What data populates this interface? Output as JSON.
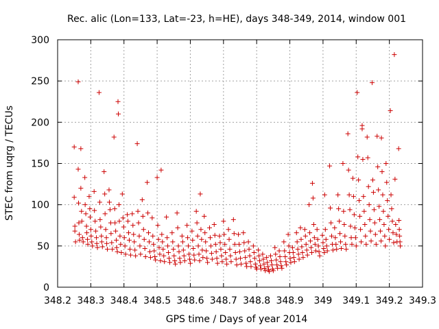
{
  "chart_data": {
    "type": "scatter",
    "title": "Rec. alic (Lon=133, Lat=-23, h=HE), days 348-349, 2014, window 001",
    "xlabel": "GPS time / Days of year 2014",
    "ylabel": "STEC from uqrg / TECUs",
    "xlim": [
      348.2,
      349.3
    ],
    "ylim": [
      0,
      300
    ],
    "xticks": [
      348.2,
      348.3,
      348.4,
      348.5,
      348.6,
      348.7,
      348.8,
      348.9,
      349,
      349.1,
      349.2,
      349.3
    ],
    "xtick_labels": [
      "348.2",
      "348.3",
      "348.4",
      "348.5",
      "348.6",
      "348.7",
      "348.8",
      "348.9",
      "349",
      "349.1",
      "349.2",
      "349.3"
    ],
    "yticks": [
      0,
      50,
      100,
      150,
      200,
      250,
      300
    ],
    "ytick_labels": [
      "0",
      "50",
      "100",
      "150",
      "200",
      "250",
      "300"
    ],
    "grid": true,
    "marker": "+",
    "color": "#cc0000",
    "points": [
      [
        348.25,
        170
      ],
      [
        348.25,
        109
      ],
      [
        348.252,
        74
      ],
      [
        348.252,
        68
      ],
      [
        348.254,
        55
      ],
      [
        348.262,
        249
      ],
      [
        348.262,
        143
      ],
      [
        348.263,
        102
      ],
      [
        348.264,
        78
      ],
      [
        348.265,
        64
      ],
      [
        348.266,
        57
      ],
      [
        348.27,
        168
      ],
      [
        348.27,
        120
      ],
      [
        348.272,
        92
      ],
      [
        348.273,
        80
      ],
      [
        348.275,
        60
      ],
      [
        348.277,
        55
      ],
      [
        348.282,
        133
      ],
      [
        348.283,
        100
      ],
      [
        348.285,
        89
      ],
      [
        348.287,
        74
      ],
      [
        348.288,
        66
      ],
      [
        348.29,
        58
      ],
      [
        348.291,
        52
      ],
      [
        348.295,
        110
      ],
      [
        348.297,
        95
      ],
      [
        348.298,
        85
      ],
      [
        348.3,
        70
      ],
      [
        348.301,
        62
      ],
      [
        348.303,
        55
      ],
      [
        348.305,
        50
      ],
      [
        348.31,
        116
      ],
      [
        348.311,
        93
      ],
      [
        348.313,
        80
      ],
      [
        348.315,
        68
      ],
      [
        348.317,
        60
      ],
      [
        348.318,
        53
      ],
      [
        348.32,
        48
      ],
      [
        348.325,
        236
      ],
      [
        348.327,
        103
      ],
      [
        348.328,
        82
      ],
      [
        348.33,
        73
      ],
      [
        348.332,
        62
      ],
      [
        348.333,
        55
      ],
      [
        348.335,
        49
      ],
      [
        348.34,
        140
      ],
      [
        348.342,
        113
      ],
      [
        348.343,
        89
      ],
      [
        348.345,
        70
      ],
      [
        348.347,
        60
      ],
      [
        348.348,
        53
      ],
      [
        348.35,
        46
      ],
      [
        348.355,
        118
      ],
      [
        348.356,
        103
      ],
      [
        348.358,
        94
      ],
      [
        348.36,
        78
      ],
      [
        348.361,
        65
      ],
      [
        348.363,
        54
      ],
      [
        348.365,
        46
      ],
      [
        348.37,
        182
      ],
      [
        348.372,
        95
      ],
      [
        348.373,
        78
      ],
      [
        348.375,
        68
      ],
      [
        348.377,
        57
      ],
      [
        348.378,
        48
      ],
      [
        348.38,
        43
      ],
      [
        348.382,
        225
      ],
      [
        348.383,
        210
      ],
      [
        348.385,
        100
      ],
      [
        348.386,
        80
      ],
      [
        348.388,
        62
      ],
      [
        348.39,
        52
      ],
      [
        348.392,
        42
      ],
      [
        348.395,
        113
      ],
      [
        348.397,
        84
      ],
      [
        348.399,
        73
      ],
      [
        348.401,
        60
      ],
      [
        348.403,
        50
      ],
      [
        348.405,
        40
      ],
      [
        348.41,
        88
      ],
      [
        348.412,
        80
      ],
      [
        348.414,
        66
      ],
      [
        348.416,
        57
      ],
      [
        348.418,
        46
      ],
      [
        348.42,
        39
      ],
      [
        348.425,
        89
      ],
      [
        348.427,
        75
      ],
      [
        348.429,
        64
      ],
      [
        348.431,
        55
      ],
      [
        348.433,
        45
      ],
      [
        348.435,
        38
      ],
      [
        348.44,
        174
      ],
      [
        348.442,
        92
      ],
      [
        348.444,
        78
      ],
      [
        348.446,
        62
      ],
      [
        348.448,
        50
      ],
      [
        348.45,
        40
      ],
      [
        348.455,
        106
      ],
      [
        348.457,
        86
      ],
      [
        348.459,
        70
      ],
      [
        348.461,
        58
      ],
      [
        348.463,
        47
      ],
      [
        348.465,
        37
      ],
      [
        348.47,
        127
      ],
      [
        348.472,
        90
      ],
      [
        348.474,
        66
      ],
      [
        348.476,
        55
      ],
      [
        348.478,
        43
      ],
      [
        348.48,
        36
      ],
      [
        348.485,
        84
      ],
      [
        348.487,
        62
      ],
      [
        348.489,
        52
      ],
      [
        348.491,
        44
      ],
      [
        348.493,
        37
      ],
      [
        348.495,
        33
      ],
      [
        348.5,
        133
      ],
      [
        348.502,
        75
      ],
      [
        348.504,
        58
      ],
      [
        348.506,
        48
      ],
      [
        348.508,
        40
      ],
      [
        348.51,
        32
      ],
      [
        348.512,
        142
      ],
      [
        348.514,
        64
      ],
      [
        348.516,
        55
      ],
      [
        348.518,
        46
      ],
      [
        348.52,
        38
      ],
      [
        348.522,
        31
      ],
      [
        348.528,
        85
      ],
      [
        348.53,
        60
      ],
      [
        348.532,
        50
      ],
      [
        348.534,
        42
      ],
      [
        348.536,
        35
      ],
      [
        348.538,
        30
      ],
      [
        348.545,
        66
      ],
      [
        348.547,
        55
      ],
      [
        348.549,
        46
      ],
      [
        348.551,
        38
      ],
      [
        348.553,
        32
      ],
      [
        348.555,
        28
      ],
      [
        348.56,
        90
      ],
      [
        348.562,
        72
      ],
      [
        348.564,
        50
      ],
      [
        348.566,
        43
      ],
      [
        348.568,
        35
      ],
      [
        348.57,
        30
      ],
      [
        348.575,
        62
      ],
      [
        348.577,
        55
      ],
      [
        348.579,
        45
      ],
      [
        348.581,
        38
      ],
      [
        348.583,
        32
      ],
      [
        348.59,
        75
      ],
      [
        348.592,
        60
      ],
      [
        348.594,
        50
      ],
      [
        348.596,
        40
      ],
      [
        348.598,
        34
      ],
      [
        348.6,
        29
      ],
      [
        348.605,
        68
      ],
      [
        348.607,
        57
      ],
      [
        348.609,
        47
      ],
      [
        348.611,
        39
      ],
      [
        348.613,
        33
      ],
      [
        348.618,
        92
      ],
      [
        348.62,
        78
      ],
      [
        348.622,
        62
      ],
      [
        348.624,
        50
      ],
      [
        348.626,
        40
      ],
      [
        348.628,
        32
      ],
      [
        348.63,
        113
      ],
      [
        348.632,
        70
      ],
      [
        348.634,
        58
      ],
      [
        348.636,
        45
      ],
      [
        348.638,
        36
      ],
      [
        348.642,
        86
      ],
      [
        348.644,
        66
      ],
      [
        348.646,
        55
      ],
      [
        348.648,
        44
      ],
      [
        348.65,
        35
      ],
      [
        348.652,
        30
      ],
      [
        348.658,
        72
      ],
      [
        348.66,
        60
      ],
      [
        348.662,
        50
      ],
      [
        348.664,
        41
      ],
      [
        348.666,
        34
      ],
      [
        348.672,
        76
      ],
      [
        348.674,
        63
      ],
      [
        348.676,
        52
      ],
      [
        348.678,
        43
      ],
      [
        348.68,
        35
      ],
      [
        348.682,
        29
      ],
      [
        348.688,
        62
      ],
      [
        348.69,
        54
      ],
      [
        348.692,
        46
      ],
      [
        348.694,
        38
      ],
      [
        348.696,
        31
      ],
      [
        348.7,
        80
      ],
      [
        348.702,
        64
      ],
      [
        348.704,
        52
      ],
      [
        348.706,
        42
      ],
      [
        348.708,
        34
      ],
      [
        348.71,
        28
      ],
      [
        348.715,
        70
      ],
      [
        348.717,
        58
      ],
      [
        348.719,
        46
      ],
      [
        348.721,
        38
      ],
      [
        348.723,
        31
      ],
      [
        348.73,
        82
      ],
      [
        348.732,
        65
      ],
      [
        348.734,
        52
      ],
      [
        348.736,
        42
      ],
      [
        348.738,
        34
      ],
      [
        348.74,
        27
      ],
      [
        348.745,
        64
      ],
      [
        348.747,
        52
      ],
      [
        348.749,
        43
      ],
      [
        348.751,
        35
      ],
      [
        348.753,
        28
      ],
      [
        348.76,
        66
      ],
      [
        348.762,
        54
      ],
      [
        348.764,
        44
      ],
      [
        348.766,
        36
      ],
      [
        348.768,
        29
      ],
      [
        348.77,
        25
      ],
      [
        348.775,
        55
      ],
      [
        348.777,
        46
      ],
      [
        348.779,
        38
      ],
      [
        348.781,
        31
      ],
      [
        348.783,
        25
      ],
      [
        348.79,
        50
      ],
      [
        348.792,
        42
      ],
      [
        348.794,
        35
      ],
      [
        348.796,
        28
      ],
      [
        348.798,
        24
      ],
      [
        348.8,
        22
      ],
      [
        348.805,
        45
      ],
      [
        348.807,
        38
      ],
      [
        348.809,
        32
      ],
      [
        348.811,
        26
      ],
      [
        348.813,
        22
      ],
      [
        348.818,
        40
      ],
      [
        348.82,
        34
      ],
      [
        348.822,
        28
      ],
      [
        348.824,
        23
      ],
      [
        348.826,
        20
      ],
      [
        348.83,
        36
      ],
      [
        348.832,
        30
      ],
      [
        348.834,
        25
      ],
      [
        348.836,
        21
      ],
      [
        348.838,
        19
      ],
      [
        348.842,
        38
      ],
      [
        348.844,
        32
      ],
      [
        348.846,
        27
      ],
      [
        348.848,
        22
      ],
      [
        348.85,
        20
      ],
      [
        348.855,
        48
      ],
      [
        348.857,
        40
      ],
      [
        348.859,
        33
      ],
      [
        348.861,
        27
      ],
      [
        348.863,
        23
      ],
      [
        348.868,
        44
      ],
      [
        348.87,
        37
      ],
      [
        348.872,
        31
      ],
      [
        348.874,
        26
      ],
      [
        348.876,
        23
      ],
      [
        348.882,
        55
      ],
      [
        348.884,
        44
      ],
      [
        348.886,
        37
      ],
      [
        348.888,
        31
      ],
      [
        348.89,
        27
      ],
      [
        348.895,
        64
      ],
      [
        348.897,
        50
      ],
      [
        348.899,
        42
      ],
      [
        348.901,
        35
      ],
      [
        348.903,
        30
      ],
      [
        348.908,
        48
      ],
      [
        348.91,
        42
      ],
      [
        348.912,
        36
      ],
      [
        348.914,
        31
      ],
      [
        348.92,
        66
      ],
      [
        348.922,
        55
      ],
      [
        348.924,
        46
      ],
      [
        348.926,
        40
      ],
      [
        348.928,
        34
      ],
      [
        348.932,
        72
      ],
      [
        348.934,
        58
      ],
      [
        348.936,
        49
      ],
      [
        348.938,
        42
      ],
      [
        348.94,
        36
      ],
      [
        348.945,
        70
      ],
      [
        348.947,
        62
      ],
      [
        348.949,
        52
      ],
      [
        348.951,
        45
      ],
      [
        348.953,
        39
      ],
      [
        348.958,
        100
      ],
      [
        348.96,
        66
      ],
      [
        348.962,
        56
      ],
      [
        348.964,
        48
      ],
      [
        348.966,
        42
      ],
      [
        348.968,
        126
      ],
      [
        348.97,
        108
      ],
      [
        348.972,
        76
      ],
      [
        348.974,
        60
      ],
      [
        348.976,
        52
      ],
      [
        348.978,
        44
      ],
      [
        348.982,
        70
      ],
      [
        348.984,
        58
      ],
      [
        348.986,
        50
      ],
      [
        348.988,
        43
      ],
      [
        348.99,
        38
      ],
      [
        348.998,
        63
      ],
      [
        349.0,
        54
      ],
      [
        349.002,
        47
      ],
      [
        349.004,
        42
      ],
      [
        349.005,
        112
      ],
      [
        349.007,
        70
      ],
      [
        349.009,
        58
      ],
      [
        349.011,
        50
      ],
      [
        349.013,
        44
      ],
      [
        349.02,
        147
      ],
      [
        349.022,
        96
      ],
      [
        349.024,
        78
      ],
      [
        349.026,
        62
      ],
      [
        349.028,
        52
      ],
      [
        349.03,
        45
      ],
      [
        349.035,
        72
      ],
      [
        349.037,
        60
      ],
      [
        349.039,
        52
      ],
      [
        349.041,
        46
      ],
      [
        349.045,
        112
      ],
      [
        349.047,
        95
      ],
      [
        349.049,
        80
      ],
      [
        349.051,
        65
      ],
      [
        349.053,
        55
      ],
      [
        349.055,
        47
      ],
      [
        349.06,
        150
      ],
      [
        349.062,
        92
      ],
      [
        349.064,
        76
      ],
      [
        349.066,
        62
      ],
      [
        349.068,
        52
      ],
      [
        349.07,
        46
      ],
      [
        349.075,
        186
      ],
      [
        349.077,
        142
      ],
      [
        349.079,
        112
      ],
      [
        349.081,
        94
      ],
      [
        349.083,
        74
      ],
      [
        349.085,
        60
      ],
      [
        349.087,
        52
      ],
      [
        349.09,
        132
      ],
      [
        349.092,
        110
      ],
      [
        349.094,
        88
      ],
      [
        349.096,
        72
      ],
      [
        349.098,
        60
      ],
      [
        349.1,
        50
      ],
      [
        349.103,
        236
      ],
      [
        349.105,
        158
      ],
      [
        349.107,
        130
      ],
      [
        349.109,
        105
      ],
      [
        349.111,
        86
      ],
      [
        349.113,
        70
      ],
      [
        349.115,
        55
      ],
      [
        349.118,
        196
      ],
      [
        349.118,
        192
      ],
      [
        349.12,
        155
      ],
      [
        349.122,
        110
      ],
      [
        349.124,
        92
      ],
      [
        349.126,
        76
      ],
      [
        349.128,
        62
      ],
      [
        349.13,
        52
      ],
      [
        349.133,
        182
      ],
      [
        349.135,
        157
      ],
      [
        349.137,
        122
      ],
      [
        349.139,
        100
      ],
      [
        349.141,
        82
      ],
      [
        349.143,
        68
      ],
      [
        349.145,
        56
      ],
      [
        349.148,
        248
      ],
      [
        349.15,
        130
      ],
      [
        349.152,
        115
      ],
      [
        349.154,
        94
      ],
      [
        349.156,
        78
      ],
      [
        349.158,
        64
      ],
      [
        349.16,
        52
      ],
      [
        349.163,
        183
      ],
      [
        349.165,
        146
      ],
      [
        349.167,
        118
      ],
      [
        349.169,
        98
      ],
      [
        349.171,
        82
      ],
      [
        349.173,
        68
      ],
      [
        349.175,
        56
      ],
      [
        349.176,
        181
      ],
      [
        349.178,
        140
      ],
      [
        349.18,
        112
      ],
      [
        349.182,
        92
      ],
      [
        349.184,
        76
      ],
      [
        349.186,
        62
      ],
      [
        349.188,
        50
      ],
      [
        349.19,
        150
      ],
      [
        349.192,
        127
      ],
      [
        349.194,
        105
      ],
      [
        349.196,
        86
      ],
      [
        349.198,
        70
      ],
      [
        349.2,
        58
      ],
      [
        349.203,
        214
      ],
      [
        349.205,
        112
      ],
      [
        349.207,
        95
      ],
      [
        349.209,
        80
      ],
      [
        349.211,
        66
      ],
      [
        349.213,
        54
      ],
      [
        349.215,
        282
      ],
      [
        349.217,
        131
      ],
      [
        349.219,
        76
      ],
      [
        349.221,
        64
      ],
      [
        349.223,
        55
      ],
      [
        349.228,
        168
      ],
      [
        349.229,
        81
      ],
      [
        349.23,
        70
      ],
      [
        349.231,
        62
      ],
      [
        349.232,
        55
      ],
      [
        349.233,
        50
      ]
    ]
  }
}
